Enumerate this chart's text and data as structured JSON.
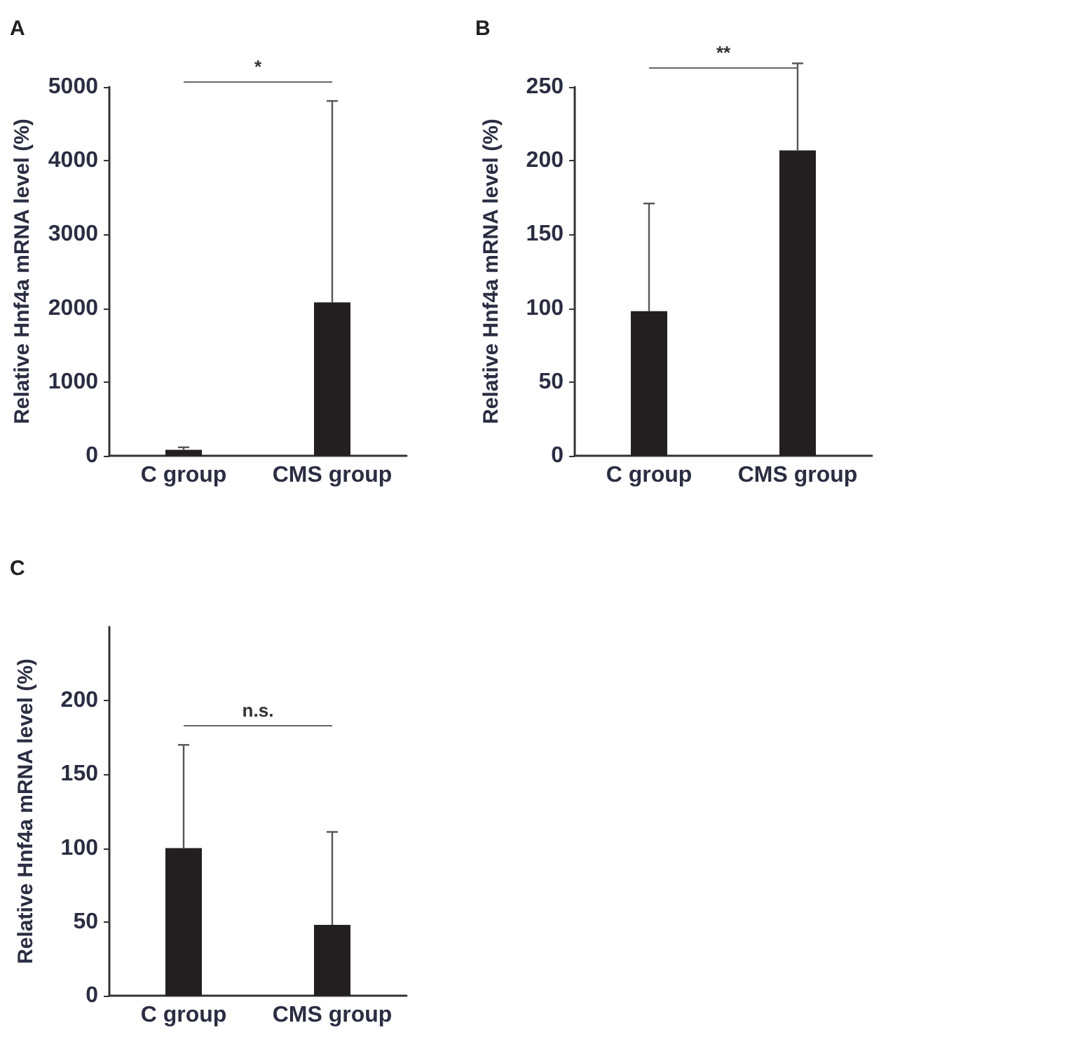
{
  "chart_data": [
    {
      "type": "bar",
      "title": "A",
      "ylabel": "Relative Hnf4a mRNA level (%)",
      "categories": [
        "C group",
        "CMS group"
      ],
      "values": [
        80,
        2080
      ],
      "color": "#231f20",
      "errors": [
        [
          80,
          115
        ],
        [
          2080,
          4810
        ]
      ],
      "ylim": [
        0,
        5000
      ],
      "yticks": [
        0,
        1000,
        2000,
        3000,
        4000,
        5000
      ],
      "grid": false,
      "annotations": [
        "*"
      ]
    },
    {
      "type": "bar",
      "title": "B",
      "ylabel": "Relative Hnf4a mRNA level (%)",
      "categories": [
        "C group",
        "CMS group"
      ],
      "values": [
        98,
        207
      ],
      "color": "#231f20",
      "errors": [
        [
          98,
          171
        ],
        [
          207,
          266
        ]
      ],
      "ylim": [
        0,
        250
      ],
      "yticks": [
        0,
        50,
        100,
        150,
        200,
        250
      ],
      "grid": false,
      "annotations": [
        "**"
      ]
    },
    {
      "type": "bar",
      "title": "C",
      "ylabel": "Relative Hnf4a mRNA level (%)",
      "categories": [
        "C group",
        "CMS group"
      ],
      "values": [
        100,
        48
      ],
      "color": "#231f20",
      "errors": [
        [
          100,
          170
        ],
        [
          48,
          111
        ]
      ],
      "ylim": [
        0,
        250
      ],
      "yticks": [
        0,
        50,
        100,
        150,
        200
      ],
      "grid": false,
      "annotations": [
        "n.s."
      ]
    }
  ]
}
